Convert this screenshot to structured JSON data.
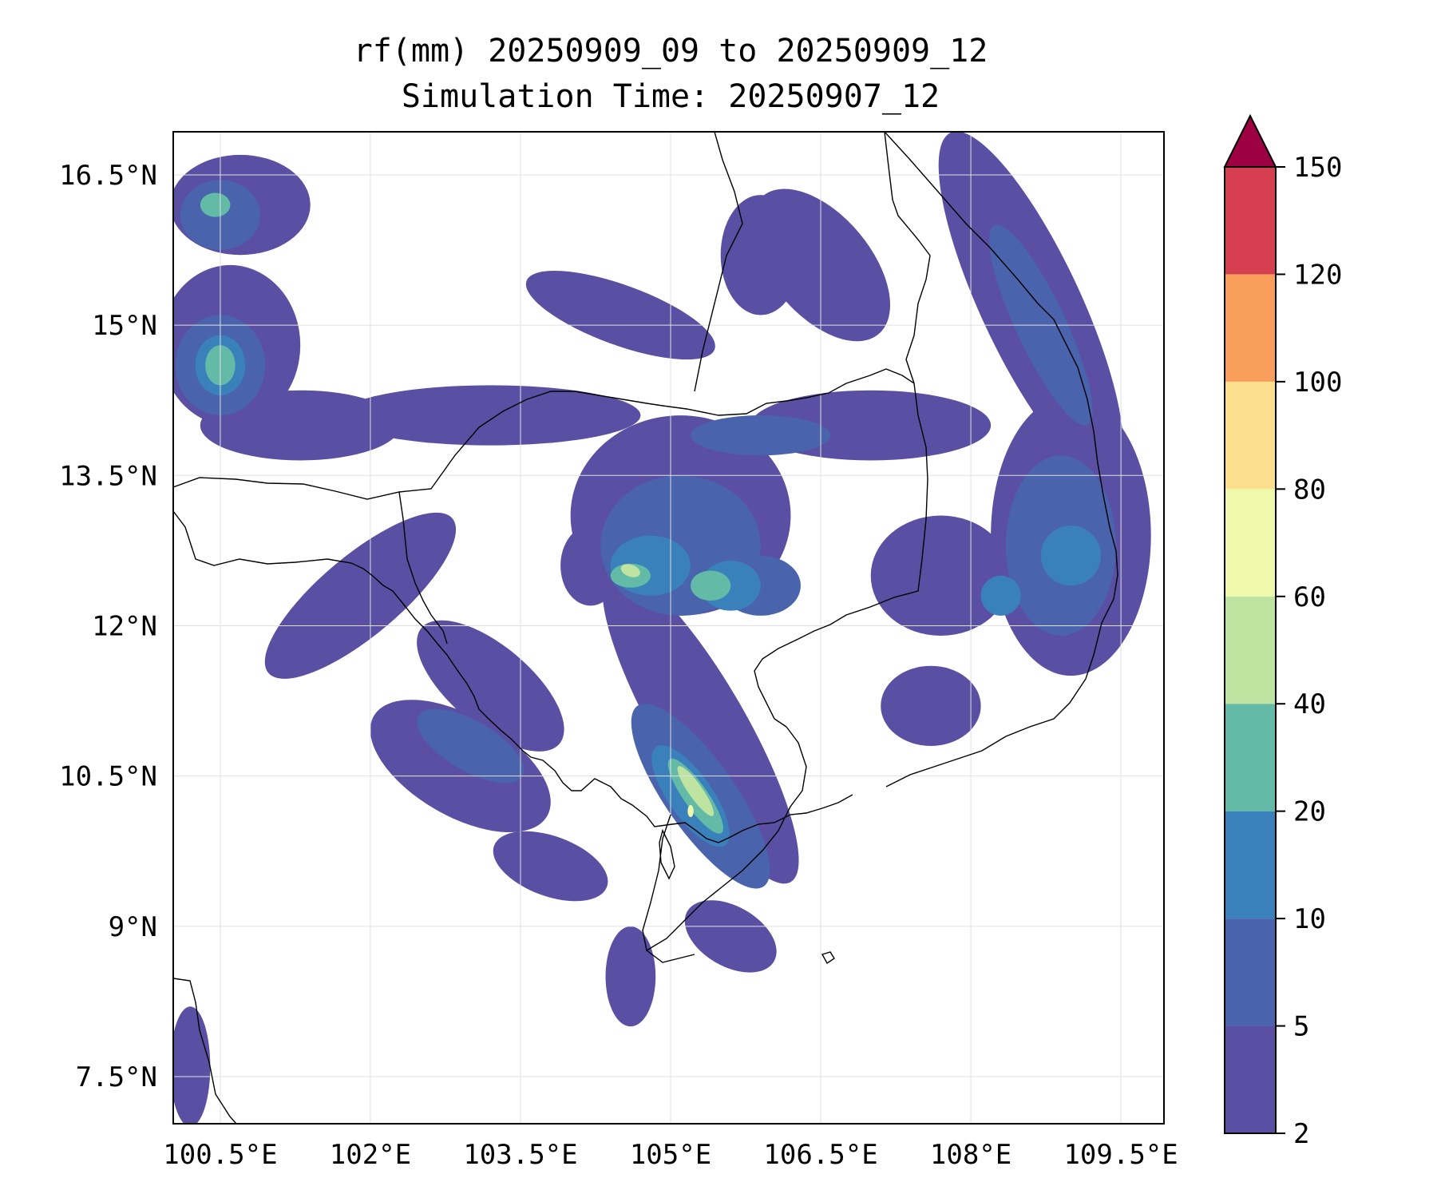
{
  "title": {
    "line1": "rf(mm) 20250909_09 to 20250909_12",
    "line2": "Simulation Time: 20250907_12"
  },
  "map": {
    "lon_range": [
      100.03,
      109.93
    ],
    "lat_range": [
      7.03,
      16.93
    ],
    "lon_ticks": [
      {
        "value": 100.5,
        "label": "100.5°E"
      },
      {
        "value": 102.0,
        "label": "102°E"
      },
      {
        "value": 103.5,
        "label": "103.5°E"
      },
      {
        "value": 105.0,
        "label": "105°E"
      },
      {
        "value": 106.5,
        "label": "106.5°E"
      },
      {
        "value": 108.0,
        "label": "108°E"
      },
      {
        "value": 109.5,
        "label": "109.5°E"
      }
    ],
    "lat_ticks": [
      {
        "value": 16.5,
        "label": "16.5°N"
      },
      {
        "value": 15.0,
        "label": "15°N"
      },
      {
        "value": 13.5,
        "label": "13.5°N"
      },
      {
        "value": 12.0,
        "label": "12°N"
      },
      {
        "value": 10.5,
        "label": "10.5°N"
      },
      {
        "value": 9.0,
        "label": "9°N"
      },
      {
        "value": 7.5,
        "label": "7.5°N"
      }
    ],
    "grid": true,
    "coastline_color": "#000000",
    "rain_bands": [
      {
        "level": 2,
        "color": "#5a4fa2",
        "blobs": [
          [
            108.6,
            15.2,
            0.5,
            1.9,
            -25
          ],
          [
            109.0,
            12.9,
            0.8,
            1.4,
            0
          ],
          [
            105.1,
            13.1,
            1.1,
            1.0,
            0
          ],
          [
            105.3,
            11.0,
            0.45,
            1.8,
            -30
          ],
          [
            103.2,
            11.4,
            0.9,
            0.4,
            40
          ],
          [
            102.9,
            10.6,
            1.0,
            0.5,
            30
          ],
          [
            101.9,
            12.3,
            0.4,
            1.2,
            50
          ],
          [
            103.2,
            14.1,
            1.5,
            0.3,
            0
          ],
          [
            101.3,
            14.0,
            1.0,
            0.35,
            0
          ],
          [
            100.6,
            14.8,
            0.7,
            0.8,
            0
          ],
          [
            100.7,
            16.2,
            0.7,
            0.5,
            0
          ],
          [
            107.0,
            14.0,
            1.2,
            0.35,
            0
          ],
          [
            106.5,
            15.6,
            0.5,
            0.9,
            -40
          ],
          [
            105.9,
            15.7,
            0.4,
            0.6,
            0
          ],
          [
            104.5,
            15.1,
            1.0,
            0.3,
            20
          ],
          [
            104.6,
            8.5,
            0.25,
            0.5,
            0
          ],
          [
            103.8,
            9.6,
            0.6,
            0.3,
            20
          ],
          [
            105.6,
            8.9,
            0.5,
            0.3,
            30
          ],
          [
            100.2,
            7.6,
            0.2,
            0.6,
            0
          ],
          [
            107.7,
            12.5,
            0.7,
            0.6,
            0
          ],
          [
            107.6,
            11.2,
            0.5,
            0.4,
            0
          ],
          [
            104.2,
            12.6,
            0.3,
            0.4,
            0
          ]
        ]
      },
      {
        "level": 5,
        "color": "#4963ad",
        "blobs": [
          [
            108.9,
            12.8,
            0.55,
            0.9,
            0
          ],
          [
            105.1,
            12.8,
            0.8,
            0.7,
            0
          ],
          [
            105.3,
            10.3,
            0.35,
            1.1,
            -35
          ],
          [
            108.7,
            15.0,
            0.25,
            1.1,
            -25
          ],
          [
            100.5,
            14.6,
            0.45,
            0.5,
            0
          ],
          [
            100.5,
            16.1,
            0.4,
            0.35,
            0
          ],
          [
            103.0,
            10.8,
            0.6,
            0.25,
            30
          ],
          [
            105.9,
            13.9,
            0.7,
            0.2,
            0
          ],
          [
            105.9,
            12.4,
            0.4,
            0.3,
            0
          ]
        ]
      },
      {
        "level": 10,
        "color": "#3a80bb",
        "blobs": [
          [
            105.2,
            10.3,
            0.22,
            0.6,
            -35
          ],
          [
            104.8,
            12.6,
            0.4,
            0.3,
            0
          ],
          [
            105.6,
            12.4,
            0.3,
            0.25,
            0
          ],
          [
            109.0,
            12.7,
            0.3,
            0.3,
            0
          ],
          [
            100.5,
            14.6,
            0.25,
            0.3,
            0
          ],
          [
            108.3,
            12.3,
            0.2,
            0.2,
            0
          ]
        ]
      },
      {
        "level": 20,
        "color": "#63bba7",
        "blobs": [
          [
            105.25,
            10.3,
            0.12,
            0.45,
            -35
          ],
          [
            104.6,
            12.5,
            0.2,
            0.12,
            0
          ],
          [
            105.4,
            12.4,
            0.2,
            0.15,
            0
          ],
          [
            100.5,
            14.6,
            0.15,
            0.2,
            0
          ],
          [
            100.45,
            16.2,
            0.15,
            0.12,
            0
          ]
        ]
      },
      {
        "level": 40,
        "color": "#bfe3a0",
        "blobs": [
          [
            105.25,
            10.35,
            0.07,
            0.3,
            -35
          ],
          [
            104.6,
            12.55,
            0.1,
            0.06,
            20
          ]
        ]
      },
      {
        "level": 60,
        "color": "#eff9ac",
        "blobs": [
          [
            105.2,
            10.15,
            0.03,
            0.06,
            0
          ]
        ]
      }
    ]
  },
  "colorbar": {
    "levels": [
      {
        "label": "2",
        "color": "#5a4fa2"
      },
      {
        "label": "5",
        "color": "#4963ad"
      },
      {
        "label": "10",
        "color": "#3a80bb"
      },
      {
        "label": "20",
        "color": "#63bba7"
      },
      {
        "label": "40",
        "color": "#bfe3a0"
      },
      {
        "label": "60",
        "color": "#eff9ac"
      },
      {
        "label": "80",
        "color": "#fbdf8c"
      },
      {
        "label": "100",
        "color": "#f99d5c"
      },
      {
        "label": "120",
        "color": "#d53f4f"
      },
      {
        "label": "150",
        "color": null
      }
    ],
    "extend_color": "#9e0142"
  }
}
